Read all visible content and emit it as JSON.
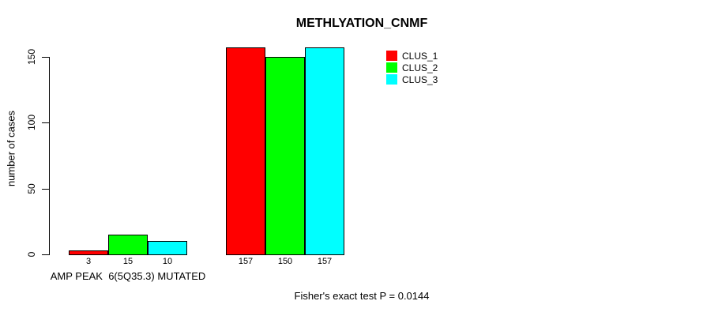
{
  "chart_data": {
    "type": "bar",
    "title": "METHLYATION_CNMF",
    "xlabel": "",
    "ylabel": "number of cases",
    "ylim": [
      0,
      157
    ],
    "yticks": [
      0,
      50,
      100,
      150
    ],
    "grid": false,
    "legend_position": "top-right",
    "legend": [
      "CLUS_1",
      "CLUS_2",
      "CLUS_3"
    ],
    "series_colors": [
      "#FF0000",
      "#00FF00",
      "#00FFFF"
    ],
    "bar_border_color": "#000000",
    "groups": [
      {
        "label": "AMP PEAK  6(5Q35.3) MUTATED",
        "values": [
          3,
          15,
          10
        ]
      },
      {
        "label": "",
        "values": [
          157,
          150,
          157
        ]
      }
    ],
    "bar_value_labels": [
      [
        "3",
        "15",
        "10"
      ],
      [
        "157",
        "150",
        "157"
      ]
    ],
    "annotation": "Fisher's exact test P = 0.0144"
  }
}
